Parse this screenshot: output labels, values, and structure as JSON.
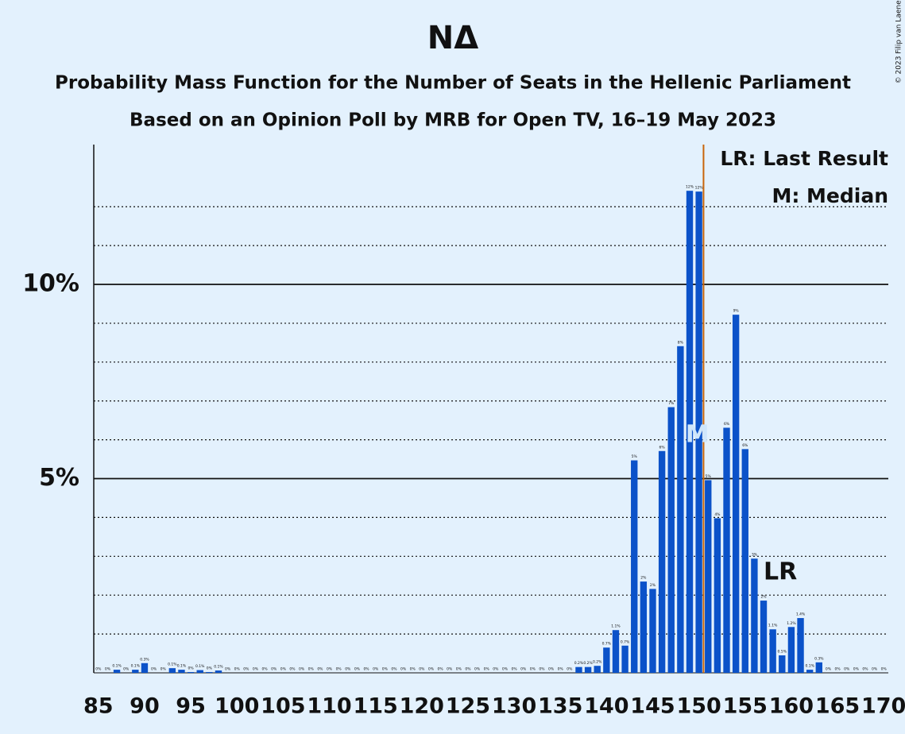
{
  "chart_data": {
    "type": "bar",
    "title": "NΔ",
    "subtitle": "Probability Mass Function for the Number of Seats in the Hellenic Parliament",
    "subtitle2": "Based on an Opinion Poll by MRB for Open TV, 16–19 May 2023",
    "copyright": "© 2023 Filip van Laenen",
    "legend": [
      "LR: Last Result",
      "M: Median"
    ],
    "color": "#0b52c9",
    "x": [
      85,
      86,
      87,
      88,
      89,
      90,
      91,
      92,
      93,
      94,
      95,
      96,
      97,
      98,
      99,
      100,
      101,
      102,
      103,
      104,
      105,
      106,
      107,
      108,
      109,
      110,
      111,
      112,
      113,
      114,
      115,
      116,
      117,
      118,
      119,
      120,
      121,
      122,
      123,
      124,
      125,
      126,
      127,
      128,
      129,
      130,
      131,
      132,
      133,
      134,
      135,
      136,
      137,
      138,
      139,
      140,
      141,
      142,
      143,
      144,
      145,
      146,
      147,
      148,
      149,
      150,
      151,
      152,
      153,
      154,
      155,
      156,
      157,
      158,
      159,
      160,
      161,
      162,
      163,
      164,
      165,
      166,
      167,
      168,
      169,
      170
    ],
    "values": [
      0,
      0,
      0.08,
      0,
      0.08,
      0.25,
      0,
      0,
      0.12,
      0.08,
      0.02,
      0.07,
      0.02,
      0.06,
      0,
      0,
      0,
      0,
      0,
      0,
      0,
      0,
      0,
      0,
      0,
      0,
      0,
      0,
      0,
      0,
      0,
      0,
      0,
      0,
      0,
      0,
      0,
      0,
      0,
      0,
      0,
      0,
      0,
      0,
      0,
      0,
      0,
      0,
      0,
      0,
      0,
      0,
      0.15,
      0.15,
      0.18,
      0.65,
      1.1,
      0.7,
      5.47,
      2.35,
      2.16,
      5.71,
      6.84,
      8.41,
      12.41,
      12.39,
      4.96,
      3.98,
      6.31,
      9.22,
      5.76,
      2.94,
      1.86,
      1.12,
      0.45,
      1.18,
      1.41,
      0.08,
      0.27,
      0,
      0,
      0,
      0,
      0,
      0,
      0
    ],
    "value_labels": [
      "0%",
      "0%",
      "0.1%",
      "0%",
      "0.1%",
      "0.3%",
      "0%",
      "0%",
      "0.1%",
      "0.1%",
      "0%",
      "0.1%",
      "0%",
      "0.1%",
      "0%",
      "0%",
      "0%",
      "0%",
      "0%",
      "0%",
      "0%",
      "0%",
      "0%",
      "0%",
      "0%",
      "0%",
      "0%",
      "0%",
      "0%",
      "0%",
      "0%",
      "0%",
      "0%",
      "0%",
      "0%",
      "0%",
      "0%",
      "0%",
      "0%",
      "0%",
      "0%",
      "0%",
      "0%",
      "0%",
      "0%",
      "0%",
      "0%",
      "0%",
      "0%",
      "0%",
      "0%",
      "0%",
      "0.2%",
      "0.2%",
      "0.2%",
      "0.7%",
      "1.1%",
      "0.7%",
      "5%",
      "2%",
      "2%",
      "6%",
      "7%",
      "8%",
      "12%",
      "12%",
      "5%",
      "4%",
      "6%",
      "9%",
      "6%",
      "3%",
      "2%",
      "1.1%",
      "0.5%",
      "1.2%",
      "1.4%",
      "0.1%",
      "0.3%",
      "0%",
      "0%",
      "0%",
      "0%",
      "0%",
      "0%",
      "0%"
    ],
    "xlim": [
      84.5,
      170.5
    ],
    "xticks": [
      85,
      90,
      95,
      100,
      105,
      110,
      115,
      120,
      125,
      130,
      135,
      140,
      145,
      150,
      155,
      160,
      165,
      170
    ],
    "ylim": [
      0,
      13.6
    ],
    "yticks": [
      {
        "value": 5,
        "label": "5%"
      },
      {
        "value": 10,
        "label": "10%"
      }
    ],
    "minor_yticks": [
      1,
      2,
      3,
      4,
      6,
      7,
      8,
      9,
      11,
      12
    ],
    "majority_line": 151,
    "majority_color": "#c8650a",
    "annotations": [
      {
        "text": "M",
        "x": 150
      },
      {
        "text": "LR",
        "x": 157
      }
    ]
  }
}
